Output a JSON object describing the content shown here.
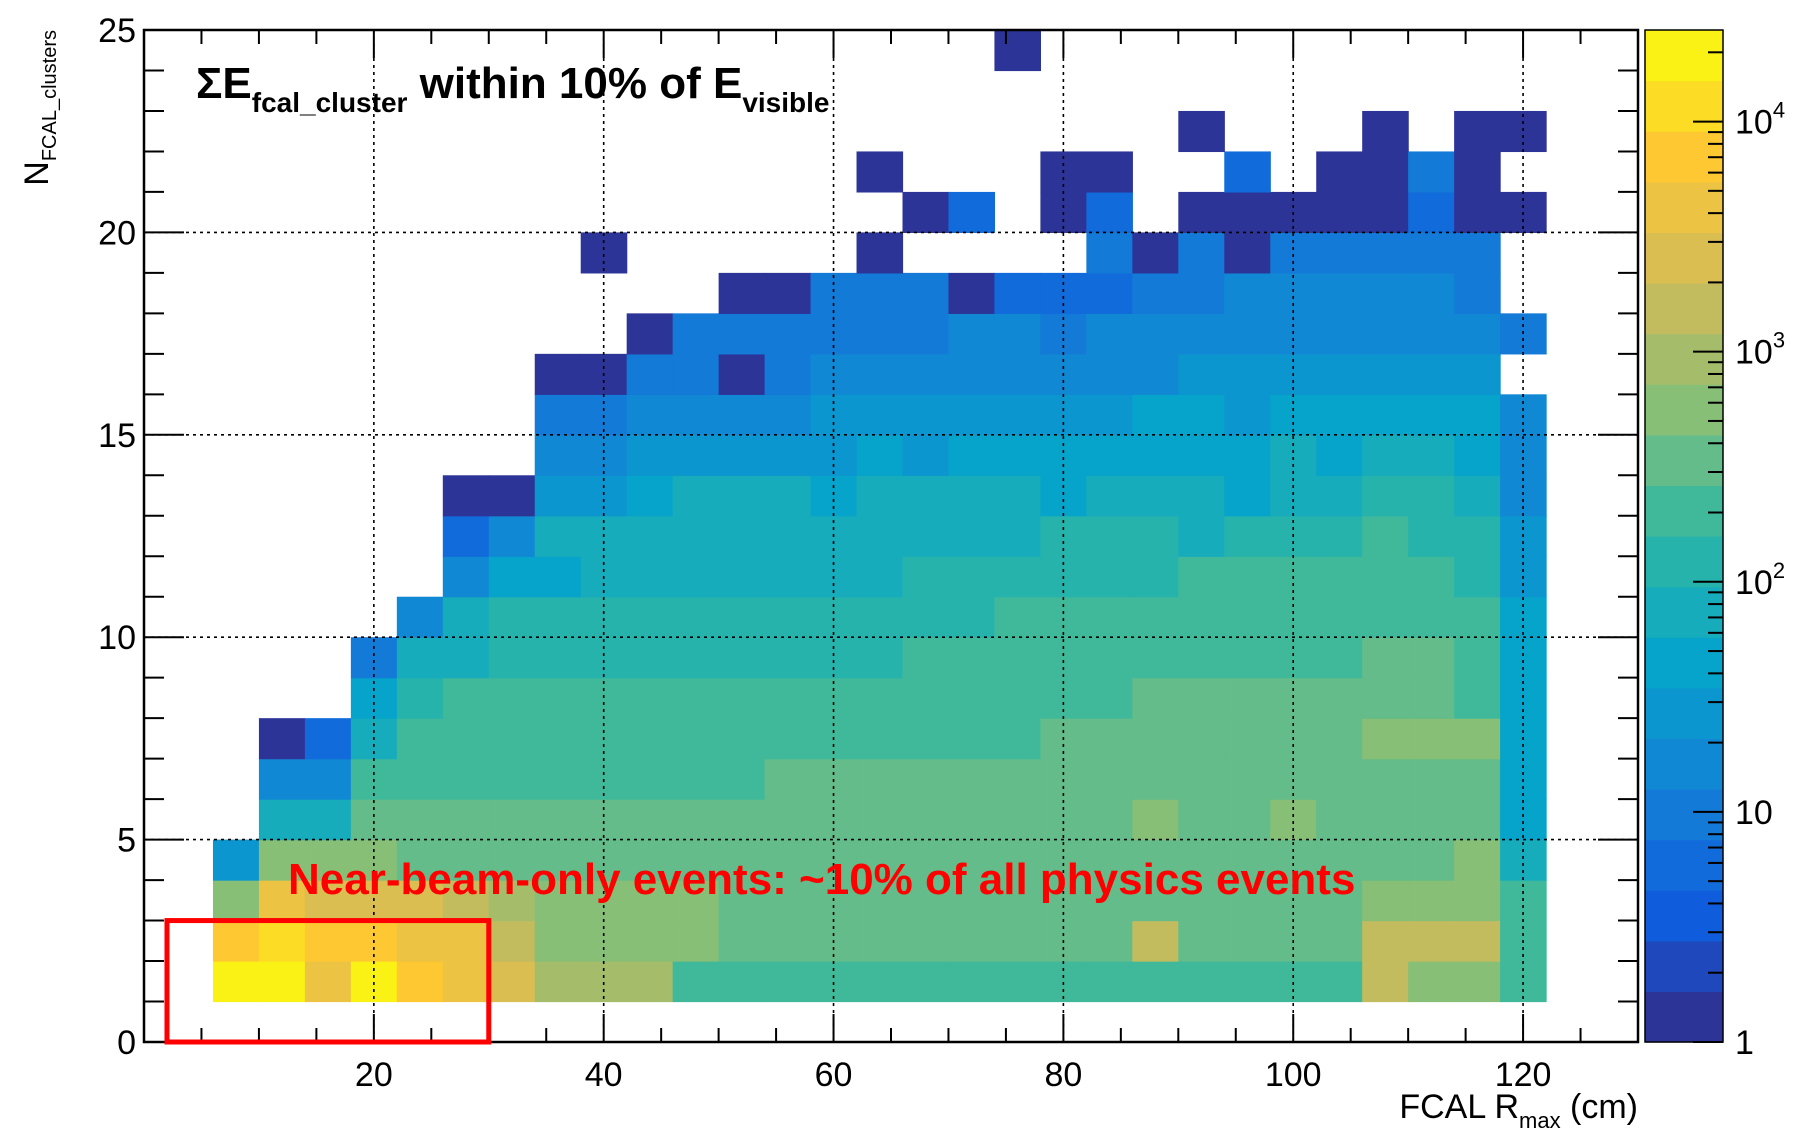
{
  "chart_data": {
    "type": "heatmap",
    "title": {
      "prefix": "ΣE",
      "sub1": "fcal_cluster",
      "middle": " within 10% of E",
      "sub2": "visible"
    },
    "xlabel": {
      "main": "FCAL R",
      "sub": "max",
      "unit": " (cm)"
    },
    "ylabel": {
      "main": "N",
      "sub": "FCAL_clusters"
    },
    "xlim": [
      0,
      130
    ],
    "ylim": [
      0,
      25
    ],
    "x_ticks": [
      20,
      40,
      60,
      80,
      100,
      120
    ],
    "x_tick_labels": [
      "20",
      "40",
      "60",
      "80",
      "100",
      "120"
    ],
    "y_ticks": [
      0,
      5,
      10,
      15,
      20,
      25
    ],
    "y_tick_labels": [
      "0",
      "5",
      "10",
      "15",
      "20",
      "25"
    ],
    "grid": true,
    "z_scale": "log",
    "zlim": [
      1,
      25000
    ],
    "colorbar_labels": [
      {
        "value": 1,
        "base": "1",
        "exp": ""
      },
      {
        "value": 10,
        "base": "10",
        "exp": ""
      },
      {
        "value": 100,
        "base": "10",
        "exp": "2"
      },
      {
        "value": 1000,
        "base": "10",
        "exp": "3"
      },
      {
        "value": 10000,
        "base": "10",
        "exp": "4"
      }
    ],
    "x_bin_edges": [
      6,
      10,
      14,
      18,
      22,
      26,
      30,
      34,
      38,
      42,
      46,
      50,
      54,
      58,
      62,
      66,
      70,
      74,
      78,
      82,
      86,
      90,
      94,
      98,
      102,
      106,
      110,
      114,
      118,
      122
    ],
    "y_bin_edges": [
      1,
      2,
      3,
      4,
      5,
      6,
      7,
      8,
      9,
      10,
      11,
      12,
      13,
      14,
      15,
      16,
      17,
      18,
      19,
      20,
      21,
      22,
      23,
      24,
      25
    ],
    "z_log10_rows": [
      [
        4.4,
        4.4,
        3.6,
        4.2,
        3.8,
        3.7,
        3.4,
        2.9,
        2.9,
        2.9,
        2.4,
        2.4,
        2.4,
        2.4,
        2.4,
        2.4,
        2.4,
        2.4,
        2.4,
        2.4,
        2.4,
        2.4,
        2.4,
        2.4,
        2.4,
        3.2,
        2.7,
        2.7,
        2.4
      ],
      [
        3.8,
        4.1,
        3.8,
        3.8,
        3.6,
        3.7,
        3.1,
        2.8,
        2.8,
        2.8,
        2.8,
        2.6,
        2.6,
        2.6,
        2.6,
        2.6,
        2.6,
        2.6,
        2.6,
        2.6,
        3.2,
        2.6,
        2.6,
        2.6,
        2.6,
        3.1,
        3.2,
        3.2,
        2.4
      ],
      [
        2.8,
        3.7,
        3.5,
        3.4,
        3.3,
        3.2,
        2.9,
        2.7,
        2.7,
        2.7,
        2.7,
        2.6,
        2.6,
        2.6,
        2.6,
        2.6,
        2.6,
        2.6,
        2.6,
        2.6,
        2.6,
        2.6,
        2.6,
        2.6,
        2.6,
        2.7,
        2.7,
        2.7,
        2.3
      ],
      [
        1.4,
        2.7,
        2.7,
        2.7,
        2.6,
        2.6,
        2.6,
        2.6,
        2.6,
        2.6,
        2.6,
        2.6,
        2.6,
        2.6,
        2.6,
        2.6,
        2.6,
        2.6,
        2.6,
        2.6,
        2.6,
        2.6,
        2.6,
        2.6,
        2.6,
        2.6,
        2.6,
        2.7,
        1.9
      ],
      [
        null,
        1.8,
        1.8,
        2.5,
        2.5,
        2.5,
        2.5,
        2.5,
        2.5,
        2.5,
        2.5,
        2.5,
        2.5,
        2.5,
        2.5,
        2.5,
        2.5,
        2.5,
        2.5,
        2.5,
        2.8,
        2.5,
        2.5,
        2.8,
        2.5,
        2.5,
        2.5,
        2.5,
        1.7
      ],
      [
        null,
        1.3,
        1.3,
        2.3,
        2.4,
        2.4,
        2.4,
        2.4,
        2.4,
        2.4,
        2.4,
        2.4,
        2.6,
        2.6,
        2.6,
        2.6,
        2.6,
        2.6,
        2.6,
        2.6,
        2.6,
        2.6,
        2.6,
        2.6,
        2.6,
        2.6,
        2.6,
        2.6,
        1.6
      ],
      [
        null,
        0.2,
        0.8,
        1.8,
        2.2,
        2.2,
        2.2,
        2.2,
        2.2,
        2.2,
        2.2,
        2.2,
        2.4,
        2.4,
        2.4,
        2.4,
        2.4,
        2.4,
        2.5,
        2.5,
        2.5,
        2.5,
        2.5,
        2.5,
        2.5,
        2.7,
        2.7,
        2.7,
        1.6
      ],
      [
        null,
        null,
        null,
        1.7,
        2.0,
        2.2,
        2.2,
        2.2,
        2.2,
        2.4,
        2.2,
        2.2,
        2.3,
        2.3,
        2.3,
        2.3,
        2.3,
        2.4,
        2.4,
        2.4,
        2.5,
        2.5,
        2.5,
        2.5,
        2.5,
        2.5,
        2.5,
        2.3,
        1.6
      ],
      [
        null,
        null,
        null,
        1.0,
        1.8,
        1.8,
        2.1,
        2.1,
        2.1,
        2.1,
        2.1,
        2.1,
        2.1,
        2.1,
        2.1,
        2.2,
        2.2,
        2.3,
        2.3,
        2.3,
        2.3,
        2.3,
        2.3,
        2.4,
        2.4,
        2.5,
        2.5,
        2.3,
        1.6
      ],
      [
        null,
        null,
        null,
        null,
        1.3,
        1.8,
        2.0,
        2.0,
        2.0,
        2.0,
        2.0,
        2.0,
        2.0,
        2.0,
        2.0,
        2.0,
        2.1,
        2.2,
        2.2,
        2.2,
        2.3,
        2.3,
        2.3,
        2.3,
        2.3,
        2.3,
        2.3,
        2.2,
        1.6
      ],
      [
        null,
        null,
        null,
        null,
        null,
        1.3,
        1.7,
        1.7,
        1.8,
        1.8,
        1.8,
        1.8,
        1.9,
        1.9,
        1.9,
        2.0,
        2.0,
        2.1,
        2.1,
        2.1,
        2.1,
        2.2,
        2.2,
        2.2,
        2.2,
        2.3,
        2.3,
        2.0,
        1.5
      ],
      [
        null,
        null,
        null,
        null,
        null,
        0.8,
        1.3,
        1.8,
        1.8,
        1.9,
        1.9,
        1.9,
        1.9,
        1.9,
        1.9,
        1.9,
        1.9,
        1.9,
        2.0,
        2.0,
        2.0,
        1.8,
        2.1,
        2.0,
        2.1,
        2.2,
        2.1,
        2.0,
        1.4
      ],
      [
        null,
        null,
        null,
        null,
        null,
        0.2,
        0.2,
        1.4,
        1.5,
        1.6,
        1.8,
        1.8,
        1.8,
        1.6,
        1.8,
        1.8,
        1.8,
        1.9,
        1.7,
        1.9,
        1.8,
        1.8,
        1.7,
        1.9,
        1.9,
        2.0,
        2.0,
        1.8,
        1.3
      ],
      [
        null,
        null,
        null,
        null,
        null,
        null,
        null,
        1.1,
        1.2,
        1.4,
        1.4,
        1.5,
        1.5,
        1.5,
        1.6,
        1.5,
        1.7,
        1.7,
        1.6,
        1.7,
        1.7,
        1.7,
        1.7,
        1.8,
        1.7,
        1.9,
        1.9,
        1.7,
        1.2
      ],
      [
        null,
        null,
        null,
        null,
        null,
        null,
        null,
        0.9,
        1.0,
        1.1,
        1.3,
        1.3,
        1.3,
        1.4,
        1.4,
        1.4,
        1.5,
        1.4,
        1.5,
        1.5,
        1.6,
        1.6,
        1.5,
        1.6,
        1.6,
        1.7,
        1.7,
        1.6,
        1.2
      ],
      [
        null,
        null,
        null,
        null,
        null,
        null,
        null,
        0.2,
        0.2,
        0.9,
        0.9,
        0.2,
        1.0,
        1.1,
        1.1,
        1.2,
        1.2,
        1.2,
        1.3,
        1.3,
        1.3,
        1.4,
        1.4,
        1.4,
        1.4,
        1.5,
        1.5,
        1.5,
        null
      ],
      [
        null,
        null,
        null,
        null,
        null,
        null,
        null,
        null,
        null,
        0.2,
        0.9,
        0.9,
        0.9,
        0.9,
        1.0,
        1.0,
        1.1,
        1.1,
        1.0,
        1.1,
        1.2,
        1.2,
        1.2,
        1.3,
        1.3,
        1.2,
        1.3,
        1.1,
        0.9
      ],
      [
        null,
        null,
        null,
        null,
        null,
        null,
        null,
        null,
        null,
        null,
        null,
        0.2,
        0.2,
        0.9,
        0.9,
        1.0,
        0.2,
        0.8,
        0.8,
        0.8,
        0.9,
        1.0,
        1.1,
        1.1,
        1.1,
        1.2,
        1.1,
        1.0,
        null
      ],
      [
        null,
        null,
        null,
        null,
        null,
        null,
        null,
        null,
        0.2,
        null,
        null,
        null,
        null,
        null,
        0.2,
        null,
        null,
        null,
        null,
        0.9,
        0.2,
        0.9,
        0.2,
        0.9,
        0.9,
        1.0,
        0.9,
        0.9,
        null
      ],
      [
        null,
        null,
        null,
        null,
        null,
        null,
        null,
        null,
        null,
        null,
        null,
        null,
        null,
        null,
        null,
        0.2,
        0.8,
        null,
        0.2,
        0.7,
        null,
        0.2,
        0.2,
        0.2,
        0.2,
        0.2,
        0.7,
        0.2,
        0.2
      ],
      [
        null,
        null,
        null,
        null,
        null,
        null,
        null,
        null,
        null,
        null,
        null,
        null,
        null,
        null,
        0.2,
        null,
        null,
        null,
        0.2,
        0.2,
        null,
        null,
        0.8,
        null,
        0.2,
        0.2,
        1.0,
        0.2,
        null
      ],
      [
        null,
        null,
        null,
        null,
        null,
        null,
        null,
        null,
        null,
        null,
        null,
        null,
        null,
        null,
        null,
        null,
        null,
        null,
        null,
        null,
        null,
        0.2,
        null,
        null,
        null,
        0.2,
        null,
        0.2,
        0.2
      ],
      [
        null,
        null,
        null,
        null,
        null,
        null,
        null,
        null,
        null,
        null,
        null,
        null,
        null,
        null,
        null,
        null,
        null,
        null,
        null,
        null,
        null,
        null,
        null,
        null,
        null,
        null,
        null,
        null,
        null
      ],
      [
        null,
        null,
        null,
        null,
        null,
        null,
        null,
        null,
        null,
        null,
        null,
        null,
        null,
        null,
        null,
        null,
        null,
        0.2,
        null,
        null,
        null,
        null,
        null,
        null,
        null,
        null,
        null,
        null,
        null
      ]
    ],
    "annotation": "Near-beam-only events: ~10% of all physics events",
    "highlight_box": {
      "x": [
        2,
        30
      ],
      "y": [
        0,
        3
      ]
    },
    "palette": [
      "#352a87",
      "#0f5cdd",
      "#1481d6",
      "#06a4ca",
      "#2eb7a4",
      "#87bf77",
      "#d1bb59",
      "#fec832",
      "#f9fb0e"
    ],
    "accent_color": "#ff0000"
  }
}
